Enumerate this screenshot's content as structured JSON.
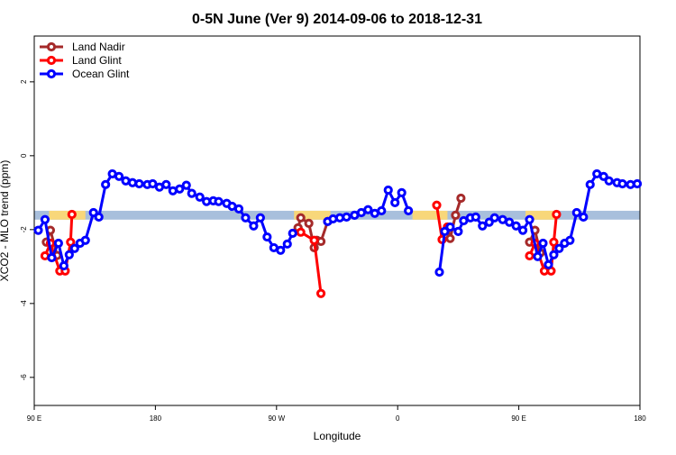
{
  "chart_data": {
    "type": "line",
    "title": "0-5N June (Ver 9)   2014-09-06 to 2018-12-31",
    "x_label": "Longitude",
    "y_label": "XCO2 - MLO trend (ppm)",
    "xlim": [
      90,
      540
    ],
    "xticks": [
      {
        "value": 90,
        "label": "90 E"
      },
      {
        "value": 180,
        "label": "180"
      },
      {
        "value": 270,
        "label": "90 W"
      },
      {
        "value": 360,
        "label": "0"
      },
      {
        "value": 450,
        "label": "90 E"
      },
      {
        "value": 540,
        "label": "180"
      }
    ],
    "ylim": [
      -6.76,
      3.24
    ],
    "yticks": [
      -6,
      -4,
      -2,
      0,
      2
    ],
    "legend": "top-left",
    "band": {
      "ylim": [
        -1.73,
        -1.49
      ],
      "color": "#a8bfdc",
      "land": [
        [
          101,
          128
        ],
        [
          283,
          310
        ],
        [
          371,
          397
        ],
        [
          455,
          477
        ]
      ],
      "land_color": "#f8d77a"
    },
    "series": [
      {
        "name": "Land Nadir",
        "color": "#a52a2a",
        "x": [
          99,
          102,
          107,
          null,
          286,
          288,
          294,
          298,
          300,
          303,
          308,
          null,
          397,
          399,
          403,
          407,
          null,
          458,
          462,
          466
        ],
        "values": [
          -2.34,
          -2.02,
          -2.7,
          null,
          -1.95,
          -1.68,
          -1.83,
          -2.49,
          -2.29,
          -2.32,
          -1.78,
          null,
          -1.93,
          -2.24,
          -1.61,
          -1.15,
          null,
          -2.34,
          -2.02,
          -2.63
        ]
      },
      {
        "name": "Land Glint",
        "color": "#ff0000",
        "x": [
          98,
          102,
          109,
          113,
          117,
          118,
          null,
          288,
          298,
          303,
          null,
          389,
          393,
          397,
          null,
          458,
          462,
          469,
          474,
          476,
          478
        ],
        "values": [
          -2.71,
          -2.37,
          -3.12,
          -3.12,
          -2.34,
          -1.59,
          null,
          -2.07,
          -2.29,
          -3.73,
          null,
          -1.34,
          -2.27,
          -1.93,
          null,
          -2.71,
          -2.37,
          -3.12,
          -3.12,
          -2.34,
          -1.59
        ]
      },
      {
        "name": "Ocean Glint",
        "color": "#0000ff",
        "x": [
          93,
          98,
          103,
          108,
          112,
          116,
          120,
          124,
          128,
          134,
          138,
          143,
          148,
          153,
          158,
          163,
          168,
          174,
          178,
          183,
          188,
          193,
          198,
          203,
          207,
          213,
          218,
          223,
          227,
          233,
          237,
          242,
          247,
          253,
          258,
          263,
          268,
          273,
          278,
          282,
          null,
          308,
          312,
          317,
          322,
          328,
          333,
          338,
          343,
          348,
          353,
          358,
          363,
          368,
          null,
          391,
          395,
          399,
          405,
          409,
          414,
          418,
          423,
          428,
          432,
          438,
          443,
          448,
          453,
          458,
          464,
          468,
          472,
          476,
          480,
          484,
          488,
          493,
          498,
          503,
          508,
          513,
          517,
          523,
          527,
          533,
          538
        ],
        "values": [
          -2.02,
          -1.73,
          -2.76,
          -2.37,
          -2.98,
          -2.68,
          -2.51,
          -2.37,
          -2.29,
          -1.54,
          -1.66,
          -0.78,
          -0.49,
          -0.56,
          -0.68,
          -0.73,
          -0.76,
          -0.78,
          -0.76,
          -0.85,
          -0.78,
          -0.95,
          -0.9,
          -0.8,
          -1.02,
          -1.12,
          -1.24,
          -1.22,
          -1.24,
          -1.29,
          -1.37,
          -1.44,
          -1.68,
          -1.9,
          -1.68,
          -2.2,
          -2.49,
          -2.56,
          -2.39,
          -2.1,
          null,
          -1.78,
          -1.71,
          -1.68,
          -1.66,
          -1.61,
          -1.54,
          -1.46,
          -1.56,
          -1.49,
          -0.93,
          -1.27,
          -1.0,
          -1.49,
          null,
          -3.15,
          -2.05,
          -1.93,
          -2.05,
          -1.76,
          -1.68,
          -1.66,
          -1.9,
          -1.8,
          -1.68,
          -1.73,
          -1.8,
          -1.9,
          -2.02,
          -1.73,
          -2.73,
          -2.37,
          -2.95,
          -2.68,
          -2.51,
          -2.37,
          -2.29,
          -1.54,
          -1.66,
          -0.78,
          -0.49,
          -0.56,
          -0.68,
          -0.73,
          -0.76,
          -0.78,
          -0.76
        ]
      }
    ]
  }
}
